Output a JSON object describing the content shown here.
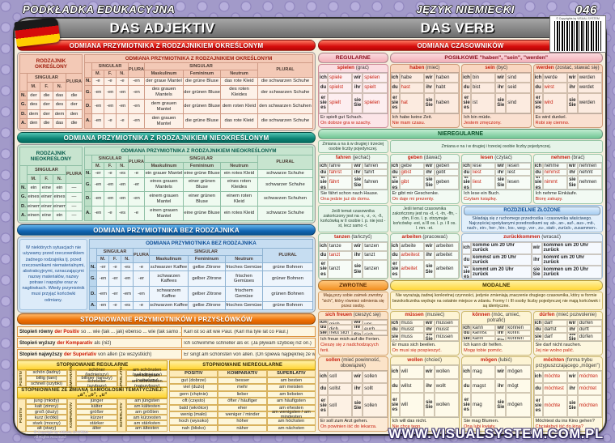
{
  "header": {
    "brand": "PODKŁADKA EDUKACYJNA",
    "subject": "JĘZYK NIEMIECKI",
    "number": "046",
    "left_title": "DAS ADJEKTIV",
    "right_title": "DAS VERB",
    "barcode_label": "© Copyrights by VISUAL SYSTEM"
  },
  "footer": {
    "website": "WWW.VISUALSYSTEM.COM.PL",
    "copyright": "© Copyright by VISUAL SYSTEM",
    "rights": "All Rights Reserved"
  },
  "labels": {
    "singular": "SINGULAR",
    "plural": "PLURAL",
    "m": "M.",
    "f": "F.",
    "n": "N.",
    "mask": "Maskulinum",
    "fem": "Femininum",
    "neut": "Neutrum",
    "cases": [
      "N.",
      "G.",
      "D.",
      "A."
    ],
    "positiv": "POSITIV",
    "komparativ": "KOMPARATIV",
    "superlativ": "SUPERLATIV",
    "pronouns": [
      "ich",
      "du",
      "er|sie|es",
      "wir",
      "ihr",
      "sie|Sie"
    ]
  },
  "adjektiv": {
    "sections": [
      {
        "banner": "ODMIANA PRZYMIOTNIKA Z RODZAJNIKIEM OKREŚLONYM",
        "theme": "red",
        "det": {
          "title": "RODZAJNIK OKREŚLONY",
          "rows": [
            [
              "der",
              "die",
              "das",
              "die"
            ],
            [
              "des",
              "der",
              "des",
              "der"
            ],
            [
              "dem",
              "der",
              "dem",
              "den"
            ],
            [
              "den",
              "die",
              "das",
              "die"
            ]
          ]
        },
        "main": {
          "title": "ODMIANA PRZYMIOTNIKA Z RODZAJNIKIEM OKREŚLONYM",
          "endings": [
            [
              "-e",
              "-e",
              "-e",
              "-en"
            ],
            [
              "-en",
              "-en",
              "-en",
              "-en"
            ],
            [
              "-en",
              "-en",
              "-en",
              "-en"
            ],
            [
              "-en",
              "-e",
              "-e",
              "-en"
            ]
          ],
          "examples": [
            [
              "der graue Mantel",
              "die grüne Bluse",
              "das rote Kleid",
              "die schwarzen Schuhe"
            ],
            [
              "des grauen Mantels",
              "der grünen Bluse",
              "des roten Kleides",
              "der schwarzen Schuhe"
            ],
            [
              "dem grauen Mantel",
              "der grünen Bluse",
              "dem roten Kleid",
              "den schwarzen Schuhen"
            ],
            [
              "den grauen Mantel",
              "die grüne Bluse",
              "das rote Kleid",
              "die schwarzen Schuhe"
            ]
          ]
        }
      },
      {
        "banner": "ODMIANA PRZYMIOTNIKA Z RODZAJNIKIEM NIEOKREŚLONYM",
        "theme": "teal",
        "det": {
          "title": "RODZAJNIK NIEOKREŚLONY",
          "rows": [
            [
              "ein",
              "eine",
              "ein",
              "—"
            ],
            [
              "eines",
              "einer",
              "eines",
              "—"
            ],
            [
              "einem",
              "einer",
              "einem",
              "—"
            ],
            [
              "einen",
              "eine",
              "ein",
              "—"
            ]
          ]
        },
        "main": {
          "title": "ODMIANA PRZYMIOTNIKA Z RODZAJNIKIEM NIEOKREŚLONYM",
          "endings": [
            [
              "-er",
              "-e",
              "-es",
              "-e"
            ],
            [
              "-en",
              "-en",
              "-en",
              "-er"
            ],
            [
              "-en",
              "-en",
              "-en",
              "-en"
            ],
            [
              "-en",
              "-e",
              "-es",
              "-e"
            ]
          ],
          "examples": [
            [
              "ein grauer Mantel",
              "eine grüne Bluse",
              "ein rotes Kleid",
              "schwarze Schuhe"
            ],
            [
              "eines grauen Mantels",
              "einer grünen Bluse",
              "eines roten Kleides",
              "schwarzer Schuhe"
            ],
            [
              "einem grauen Mantel",
              "einer grünen Bluse",
              "einem roten Kleid",
              "schwarzen Schuhen"
            ],
            [
              "einen grauen Mantel",
              "eine grüne Bluse",
              "ein rotes Kleid",
              "schwarze Schuhe"
            ]
          ]
        }
      },
      {
        "banner": "ODMIANA PRZYMIOTNIKA BEZ RODZAJNIKA",
        "theme": "blue",
        "note": "W niektórych sytuacjach nie używamy przed rzeczownikiem żadnego rodzajnika tj. przed rzeczownikami niematerialnymi, abstrakcyjnymi, oznaczającymi nazwy materiałów, nazwy potraw i napojów oraz w nagłówkach. Wtedy przymiotnik musi przyjąć końcówki odmiany.",
        "main": {
          "title": "ODMIANA PRZYMIOTNIKA BEZ RODZAJNIKA",
          "endings": [
            [
              "-er",
              "-e",
              "-es",
              "-e"
            ],
            [
              "-en",
              "-er",
              "-en",
              "-er"
            ],
            [
              "-em",
              "-er",
              "-em",
              "-en"
            ],
            [
              "-en",
              "-e",
              "-es",
              "-e"
            ]
          ],
          "examples": [
            [
              "schwarzer Kaffee",
              "gelbe Zitrone",
              "frisches Gemüse",
              "grüne Bohnen"
            ],
            [
              "schwarzen Kaffees",
              "gelber Zitrone",
              "frischen Gemüses",
              "grüner Bohnen"
            ],
            [
              "schwarzem Kaffee",
              "gelber Zitrone",
              "frischem Gemüse",
              "grünen Bohnen"
            ],
            [
              "schwarzen Kaffee",
              "gelbe Zitrone",
              "frisches Gemüse",
              "grüne Bohnen"
            ]
          ]
        }
      }
    ]
  },
  "grading": {
    "banner": "STOPNIOWANIE PRZYMIOTNIKÓW I PRZYSŁÓWKÓW",
    "intro": [
      {
        "term": "Stopień równy",
        "de": "der Positiv",
        "rest": "so ... wie (tak ... jak) ebenso ... wie (tak samo ... jak)",
        "example": "Karl ist so alt wie Paul. (Karl ma tyle lat co Paul.)"
      },
      {
        "term": "Stopień wyższy",
        "de": "der Komparativ",
        "rest": "als (niż)",
        "example": "Ich schwimme schneller als er. (Ja pływam szybciej niż on.)"
      },
      {
        "term": "Stopień najwyższy",
        "de": "der Superlativ",
        "rest": "von allen (ze wszystkich)",
        "example": "Er singt am schönsten von allen. (On śpiewa najpiękniej ze wszystkich.)"
      }
    ],
    "regular": {
      "title": "STOPNIOWANIE REGULARNE",
      "rows": [
        [
          "schön (ładny)",
          "schöner (ładniejszy)",
          "am schönsten (najładniejszy)"
        ],
        [
          "billig (tani)",
          "billiger (tańszy)",
          "am billigsten (najtańszy)"
        ],
        [
          "schnell (szybki)",
          "schneller (szybszy)",
          "am schnellsten (najszybszy)"
        ]
      ]
    },
    "vowel": {
      "title": "STOPNIOWANIE ZE ZMIANĄ SAMOGŁOSKI TEMATYCZNEJ: „a”, „o”, „u”",
      "rows": [
        [
          "jung (młody)",
          "jünger",
          "am jüngsten"
        ],
        [
          "kalt (zimny)",
          "kälter",
          "am kältesten"
        ],
        [
          "groß (duży)",
          "größer",
          "am größten"
        ],
        [
          "kurz (krótki)",
          "kürzer",
          "am kürzesten"
        ],
        [
          "stark (mocny)",
          "stärker",
          "am stärksten"
        ],
        [
          "alt (stary)",
          "älter",
          "am ältesten"
        ]
      ]
    },
    "irregular": {
      "title": "STOPNIOWANIE NIEREGULARNE",
      "rows": [
        [
          "gut (dobrze)",
          "besser",
          "am besten"
        ],
        [
          "viel (dużo)",
          "mehr",
          "am meisten"
        ],
        [
          "gern (chętnie)",
          "lieber",
          "am liebsten"
        ],
        [
          "oft (często)",
          "öfter / häufiger",
          "am häufigsten"
        ],
        [
          "bald (wkrótce)",
          "eher",
          "am ehesten"
        ],
        [
          "wenig (mało)",
          "weniger / minder",
          "am wenigsten / am mindesten"
        ],
        [
          "hoch (wysoko)",
          "höher",
          "am höchsten"
        ],
        [
          "nah (blisko)",
          "näher",
          "am nächsten"
        ]
      ]
    }
  },
  "verbs": {
    "banner": "ODMIANA CZASOWNIKÓW",
    "bands": [
      {
        "cls": "pink",
        "headers": [
          {
            "label": "REGULARNE",
            "span": 1,
            "cls": "pink"
          },
          {
            "label": "POSIŁKOWE \"haben\", \"sein\", \"werden\"",
            "span": 3,
            "cls": "pink"
          }
        ],
        "verbs": [
          {
            "name": "spielen",
            "tr": "(grać)",
            "box": "rose",
            "f": [
              "spiele",
              "spielst",
              "spielt",
              "spielen",
              "spielt",
              "spielen"
            ],
            "hl": [
              0,
              1,
              2,
              3,
              4,
              5
            ],
            "ex_de": "Er spielt gut Schach.",
            "ex_pl": "On dobrze gra w szachy."
          },
          {
            "name": "haben",
            "tr": "(mieć)",
            "box": "salmon",
            "f": [
              "habe",
              "hast",
              "hat",
              "haben",
              "habt",
              "haben"
            ],
            "hl": [
              1,
              2
            ],
            "ex_de": "Ich habe keine Zeit.",
            "ex_pl": "Nie mam czasu."
          },
          {
            "name": "sein",
            "tr": "(być)",
            "box": "salmon",
            "f": [
              "bin",
              "bist",
              "ist",
              "sind",
              "seid",
              "sind"
            ],
            "hl": [],
            "ex_de": "Ich bin müde.",
            "ex_pl": "Jestem zmęczony."
          },
          {
            "name": "werden",
            "tr": "(zostać, stawać się)",
            "box": "salmon",
            "f": [
              "werde",
              "wirst",
              "wird",
              "werden",
              "werdet",
              "werden"
            ],
            "hl": [
              1,
              2
            ],
            "ex_de": "Es wird dunkel.",
            "ex_pl": "Robi się ciemno."
          }
        ]
      },
      {
        "cls": "green",
        "banner": "NIEREGULARNE",
        "notes": [
          {
            "text": "Zmiana a na ä w drugiej i trzeciej osobie liczby pojedynczej.",
            "span": 1
          },
          {
            "text": "Zmiana e na i w drugiej i trzeciej osobie liczby pojedynczej.",
            "span": 3
          }
        ],
        "verbs": [
          {
            "name": "fahren",
            "tr": "(jechać)",
            "box": "mint",
            "f": [
              "fahre",
              "fährst",
              "fährt",
              "fahren",
              "fahrt",
              "fahren"
            ],
            "hl": [
              1,
              2
            ],
            "ex_de": "Sie fährt schon nach Hause.",
            "ex_pl": "Ona jedzie już do domu."
          },
          {
            "name": "geben",
            "tr": "(dawać)",
            "box": "mint",
            "f": [
              "gebe",
              "gibst",
              "gibt",
              "geben",
              "gebt",
              "geben"
            ],
            "hl": [
              1,
              2
            ],
            "ex_de": "Er gibt mir Geschenke.",
            "ex_pl": "On daje mi prezenty."
          },
          {
            "name": "lesen",
            "tr": "(czytać)",
            "box": "mint",
            "f": [
              "lese",
              "liest",
              "liest",
              "lesen",
              "lest",
              "lesen"
            ],
            "hl": [
              1,
              2
            ],
            "ex_de": "Ich lese ein Buch.",
            "ex_pl": "Czytam książkę."
          },
          {
            "name": "nehmen",
            "tr": "(brać)",
            "box": "mint",
            "f": [
              "nehme",
              "nimmst",
              "nimmt",
              "nehmen",
              "nehmt",
              "nehmen"
            ],
            "hl": [
              1,
              2
            ],
            "ex_de": "Ich nehme Einkäufe.",
            "ex_pl": "Biorę zakupy."
          }
        ]
      },
      {
        "cls": "mixed",
        "notes": [
          {
            "text": "Jeśli temat czasownika zakończony jest na -s, -z, -x, -ß, końcówką w II osobie l. p. nie jest -st, lecz samo -t.",
            "span": 1
          },
          {
            "text": "Jeśli temat czasownika zakończony jest na -d, -t, -tn, -ffn, -chn, II os. l. p. otrzymuje końcówkę -est, a III os. l. p. i II os. l. mn. -et.",
            "span": 1
          },
          {
            "header": "ROZDZIELNIE ZŁOŻONE",
            "box": "blue",
            "text": "Składają się z ruchomego przedrostka i czasownika właściwego. Najczęściej spotykanymi przedrostkami są: ab-, an-, auf-, aus-, mit-, nach-, ein-, her-, hin-, los-, weg-, vor-, zu-, statt-, zurück-, zusammen-.",
            "span": 2
          }
        ],
        "verbs": [
          {
            "name": "tanzen",
            "tr": "(tańczyć)",
            "box": "mint",
            "f": [
              "tanze",
              "tanzt",
              "tanzt",
              "tanzen",
              "tanzt",
              "tanzen"
            ],
            "hl": [
              1
            ]
          },
          {
            "name": "arbeiten",
            "tr": "(pracować)",
            "box": "mint",
            "f": [
              "arbeite",
              "arbeitest",
              "arbeitet",
              "arbeiten",
              "arbeitet",
              "arbeiten"
            ],
            "hl": [
              1,
              2
            ]
          },
          {
            "name": "zurückkommen",
            "tr": "(wracać)",
            "box": "blue",
            "span": 2,
            "bold": true,
            "f": [
              "komme um 20 Uhr zurück",
              "kommst um 20 Uhr zurück",
              "kommt um 20 Uhr zurück",
              "kommen um 20 Uhr zurück",
              "kommt um 20 Uhr zurück",
              "kommen um 20 Uhr zurück"
            ],
            "hl": []
          }
        ]
      },
      {
        "cls": "warm",
        "headers": [
          {
            "label": "ZWROTNE",
            "span": 1,
            "cls": "orange"
          },
          {
            "label": "MODALNE",
            "span": 3,
            "cls": "yellow"
          }
        ],
        "notes": [
          {
            "text": "Mają przy sobie zaimek zwrotny \"sich\", który również odmienia się przez osoby.",
            "span": 1,
            "box": "peach"
          },
          {
            "text": "Nie wyrażają żadnej konkretnej czynności, jedynie zmieniają znaczenie drugiego czasownika, który w formie bezokolicznika wędruje na ostatnie miejsce w zdaniu. Formy I i III osoby liczby pojedynczej nie mają końcówek i są identyczne.",
            "span": 3,
            "box": "cream"
          }
        ],
        "verbs": [
          {
            "name": "sich freuen",
            "tr": "(cieszyć się)",
            "box": "peach",
            "f": [
              "freue mich",
              "freust dich",
              "freut sich",
              "freuen uns",
              "freut euch",
              "freuen sich"
            ],
            "hl": [],
            "ex_de": "Ich freue mich auf die Ferien.",
            "ex_pl": "Cieszę się z nadchodzących ferii."
          },
          {
            "name": "müssen",
            "tr": "(musieć)",
            "box": "cream",
            "f": [
              "muss",
              "musst",
              "muss",
              "müssen",
              "müsst",
              "müssen"
            ],
            "hl": [],
            "ex_de": "Er muss sich beeilen.",
            "ex_pl": "On musi się pospieszyć."
          },
          {
            "name": "können",
            "tr": "(móc, umieć, potrafić)",
            "box": "cream",
            "f": [
              "kann",
              "kannst",
              "kann",
              "können",
              "könnt",
              "können"
            ],
            "hl": [],
            "ex_de": "Ich kann dir helfen.",
            "ex_pl": "Mogę tobie pomóc."
          },
          {
            "name": "dürfen",
            "tr": "(mieć pozwolenie)",
            "box": "cream",
            "f": [
              "darf",
              "darfst",
              "darf",
              "dürfen",
              "dürft",
              "dürfen"
            ],
            "hl": [],
            "ex_de": "Sie darf nicht rauchen.",
            "ex_pl": "Jej nie wolno palić."
          }
        ]
      },
      {
        "cls": "warm2",
        "verbs": [
          {
            "name": "sollen",
            "tr": "(mieć powinność, obowiązek)",
            "box": "peach",
            "f": [
              "soll",
              "sollst",
              "soll",
              "sollen",
              "sollt",
              "sollen"
            ],
            "hl": [],
            "ex_de": "Er soll zum Arzt gehen.",
            "ex_pl": "On powinien iść do lekarza."
          },
          {
            "name": "wollen",
            "tr": "(chcieć)",
            "box": "cream",
            "f": [
              "will",
              "willst",
              "will",
              "wollen",
              "wollt",
              "wollen"
            ],
            "hl": [],
            "ex_de": "Ich will das nicht.",
            "ex_pl": "Nie chcę tego."
          },
          {
            "name": "mögen",
            "tr": "(lubić)",
            "box": "cream",
            "f": [
              "mag",
              "magst",
              "mag",
              "mögen",
              "mögt",
              "mögen"
            ],
            "hl": [],
            "ex_de": "Sie mag Blumen.",
            "ex_pl": "Ona lubi kwiaty."
          },
          {
            "name": "möchten",
            "tr": "(forma trybu przypuszczającego „mögen”)",
            "box": "cream",
            "f": [
              "möchte",
              "möchtest",
              "möchte",
              "möchten",
              "möchtet",
              "möchten"
            ],
            "hl": [
              0,
              1,
              2,
              3,
              4,
              5
            ],
            "ex_de": "Möchtest du ins Kino gehen?",
            "ex_pl": "Chciałabyś iść do kina?"
          }
        ]
      }
    ]
  }
}
